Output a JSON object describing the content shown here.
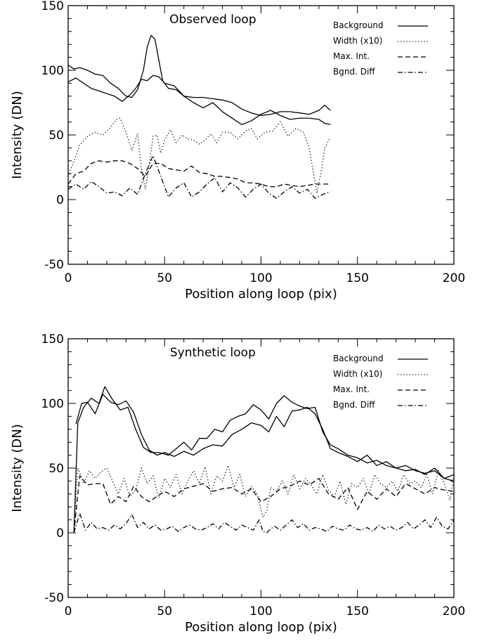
{
  "chart_data": [
    {
      "type": "line",
      "title": "Observed loop",
      "xlabel": "Position along loop (pix)",
      "ylabel": "Intensity (DN)",
      "xlim": [
        0,
        200
      ],
      "ylim": [
        -50,
        150
      ],
      "xticks": [
        "0",
        "50",
        "100",
        "150",
        "200"
      ],
      "yticks": [
        "-50",
        "0",
        "50",
        "100",
        "150"
      ],
      "grid": false,
      "legend_position": "top-right",
      "series": [
        {
          "name": "Background",
          "style": "solid",
          "x": [
            0,
            3,
            6,
            10,
            14,
            18,
            22,
            26,
            30,
            33,
            36,
            39,
            41,
            43,
            45,
            47,
            49,
            52,
            56,
            60,
            65,
            70,
            75,
            80,
            85,
            90,
            95,
            100,
            105,
            110,
            115,
            120,
            125,
            130,
            133,
            136
          ],
          "y": [
            104,
            101,
            102,
            100,
            97,
            96,
            90,
            86,
            80,
            79,
            85,
            100,
            118,
            127,
            124,
            108,
            92,
            86,
            85,
            80,
            79,
            79,
            78,
            77,
            75,
            70,
            67,
            65,
            66,
            68,
            68,
            67,
            66,
            69,
            73,
            69
          ]
        },
        {
          "name": "",
          "style": "solid",
          "x": [
            0,
            4,
            8,
            12,
            16,
            20,
            24,
            28,
            32,
            35,
            38,
            41,
            44,
            47,
            50,
            55,
            60,
            65,
            70,
            75,
            80,
            85,
            90,
            95,
            100,
            105,
            110,
            115,
            120,
            125,
            130,
            133,
            136
          ],
          "y": [
            91,
            94,
            90,
            86,
            84,
            82,
            80,
            76,
            81,
            86,
            93,
            92,
            96,
            95,
            90,
            88,
            80,
            75,
            71,
            75,
            68,
            63,
            58,
            61,
            66,
            69,
            65,
            62,
            63,
            63,
            62,
            59,
            58
          ]
        },
        {
          "name": "Width (x10)",
          "style": "dotted",
          "x": [
            0,
            3,
            6,
            10,
            14,
            18,
            22,
            25,
            27,
            30,
            33,
            36,
            38,
            40,
            42,
            44,
            46,
            48,
            50,
            53,
            56,
            59,
            62,
            65,
            68,
            71,
            74,
            77,
            80,
            84,
            88,
            92,
            95,
            98,
            102,
            106,
            110,
            114,
            118,
            122,
            125,
            127,
            129,
            131,
            133,
            136
          ],
          "y": [
            18,
            30,
            42,
            49,
            52,
            50,
            56,
            62,
            63,
            52,
            38,
            51,
            24,
            8,
            26,
            49,
            50,
            36,
            46,
            54,
            44,
            50,
            47,
            46,
            43,
            46,
            51,
            44,
            52,
            52,
            47,
            53,
            55,
            47,
            52,
            53,
            60,
            49,
            55,
            52,
            40,
            22,
            5,
            20,
            40,
            48
          ]
        },
        {
          "name": "Max. Int.",
          "style": "dashed",
          "x": [
            0,
            4,
            8,
            12,
            16,
            20,
            24,
            28,
            32,
            36,
            40,
            44,
            48,
            52,
            56,
            60,
            64,
            68,
            72,
            76,
            80,
            84,
            88,
            92,
            96,
            100,
            104,
            108,
            112,
            116,
            120,
            124,
            128,
            132,
            136
          ],
          "y": [
            12,
            20,
            22,
            28,
            30,
            29,
            30,
            30,
            28,
            24,
            18,
            28,
            28,
            24,
            23,
            22,
            26,
            21,
            20,
            18,
            18,
            17,
            16,
            13,
            13,
            12,
            10,
            10,
            12,
            11,
            10,
            11,
            12,
            12,
            12
          ]
        },
        {
          "name": "Bgnd. Diff",
          "style": "dashdot",
          "x": [
            0,
            4,
            8,
            12,
            16,
            20,
            24,
            28,
            32,
            36,
            40,
            44,
            48,
            52,
            56,
            60,
            64,
            68,
            72,
            76,
            80,
            84,
            88,
            92,
            96,
            100,
            104,
            108,
            112,
            116,
            120,
            124,
            128,
            132,
            136
          ],
          "y": [
            8,
            12,
            8,
            14,
            10,
            5,
            6,
            3,
            9,
            4,
            20,
            34,
            18,
            2,
            9,
            13,
            2,
            6,
            12,
            17,
            6,
            13,
            9,
            2,
            8,
            12,
            5,
            1,
            6,
            10,
            5,
            8,
            1,
            4,
            6
          ]
        }
      ]
    },
    {
      "type": "line",
      "title": "Synthetic loop",
      "xlabel": "Position along loop (pix)",
      "ylabel": "Intensity (DN)",
      "xlim": [
        0,
        200
      ],
      "ylim": [
        -50,
        150
      ],
      "xticks": [
        "0",
        "50",
        "100",
        "150",
        "200"
      ],
      "yticks": [
        "-50",
        "0",
        "50",
        "100",
        "150"
      ],
      "grid": false,
      "legend_position": "top-right",
      "series": [
        {
          "name": "Background",
          "style": "solid",
          "x": [
            3,
            5,
            8,
            12,
            16,
            19,
            23,
            27,
            31,
            35,
            39,
            43,
            47,
            52,
            56,
            60,
            64,
            68,
            72,
            76,
            80,
            84,
            88,
            92,
            96,
            100,
            104,
            108,
            112,
            116,
            120,
            124,
            128,
            132,
            136,
            140,
            145,
            150,
            155,
            160,
            165,
            170,
            175,
            180,
            185,
            190,
            195,
            200
          ],
          "y": [
            0,
            85,
            97,
            104,
            100,
            113,
            103,
            95,
            97,
            80,
            66,
            62,
            62,
            60,
            65,
            70,
            64,
            73,
            73,
            80,
            78,
            87,
            90,
            92,
            99,
            95,
            88,
            100,
            106,
            101,
            98,
            96,
            97,
            78,
            68,
            65,
            60,
            58,
            54,
            56,
            52,
            50,
            52,
            48,
            46,
            48,
            42,
            45
          ]
        },
        {
          "name": "",
          "style": "solid",
          "x": [
            4,
            7,
            10,
            14,
            18,
            22,
            26,
            30,
            34,
            38,
            42,
            46,
            50,
            55,
            60,
            65,
            70,
            75,
            80,
            85,
            90,
            95,
            100,
            104,
            108,
            112,
            116,
            120,
            124,
            128,
            132,
            136,
            140,
            145,
            150,
            155,
            160,
            165,
            170,
            175,
            180,
            185,
            190,
            195,
            200
          ],
          "y": [
            84,
            100,
            101,
            92,
            107,
            101,
            99,
            102,
            93,
            76,
            64,
            60,
            62,
            59,
            63,
            60,
            65,
            68,
            67,
            76,
            80,
            85,
            83,
            78,
            90,
            82,
            94,
            95,
            97,
            92,
            80,
            65,
            62,
            59,
            55,
            60,
            52,
            55,
            50,
            48,
            49,
            45,
            50,
            42,
            40
          ]
        },
        {
          "name": "Width (x10)",
          "style": "dotted",
          "x": [
            3,
            5,
            8,
            11,
            14,
            17,
            20,
            23,
            26,
            29,
            32,
            35,
            38,
            41,
            44,
            47,
            50,
            53,
            56,
            59,
            62,
            65,
            68,
            71,
            74,
            77,
            80,
            83,
            86,
            89,
            92,
            95,
            98,
            101,
            103,
            105,
            108,
            111,
            114,
            117,
            120,
            123,
            126,
            129,
            132,
            135,
            138,
            141,
            144,
            147,
            150,
            153,
            156,
            159,
            162,
            165,
            168,
            171,
            174,
            177,
            180,
            183,
            186,
            189,
            192,
            195,
            198,
            200
          ],
          "y": [
            0,
            50,
            38,
            48,
            42,
            47,
            50,
            40,
            30,
            42,
            28,
            33,
            50,
            38,
            44,
            27,
            42,
            35,
            45,
            30,
            40,
            48,
            38,
            51,
            30,
            44,
            40,
            52,
            35,
            45,
            28,
            36,
            30,
            12,
            17,
            35,
            32,
            40,
            30,
            45,
            34,
            42,
            37,
            30,
            45,
            33,
            28,
            40,
            22,
            38,
            35,
            42,
            30,
            45,
            38,
            35,
            40,
            32,
            45,
            38,
            40,
            35,
            45,
            30,
            48,
            38,
            25,
            45
          ]
        },
        {
          "name": "Max. Int.",
          "style": "dashed",
          "x": [
            3,
            6,
            10,
            14,
            18,
            22,
            26,
            30,
            34,
            38,
            42,
            46,
            50,
            55,
            60,
            65,
            70,
            75,
            80,
            85,
            90,
            95,
            100,
            105,
            110,
            115,
            120,
            125,
            130,
            135,
            140,
            145,
            150,
            155,
            160,
            165,
            170,
            175,
            180,
            185,
            190,
            195,
            200
          ],
          "y": [
            0,
            44,
            37,
            38,
            38,
            22,
            28,
            24,
            36,
            28,
            24,
            28,
            32,
            28,
            34,
            36,
            38,
            32,
            34,
            35,
            30,
            34,
            24,
            28,
            34,
            36,
            40,
            37,
            42,
            30,
            26,
            35,
            18,
            32,
            26,
            34,
            28,
            38,
            34,
            30,
            35,
            33,
            32
          ]
        },
        {
          "name": "Bgnd. Diff",
          "style": "dashdot",
          "x": [
            3,
            6,
            9,
            12,
            15,
            18,
            21,
            24,
            27,
            30,
            33,
            36,
            39,
            42,
            45,
            48,
            51,
            54,
            57,
            60,
            63,
            66,
            69,
            72,
            75,
            78,
            81,
            84,
            87,
            90,
            93,
            96,
            99,
            101,
            103,
            105,
            107,
            110,
            113,
            116,
            119,
            122,
            125,
            128,
            131,
            134,
            137,
            140,
            143,
            146,
            149,
            152,
            155,
            158,
            161,
            164,
            167,
            170,
            173,
            176,
            179,
            182,
            185,
            188,
            191,
            194,
            197,
            200
          ],
          "y": [
            0,
            15,
            2,
            8,
            3,
            4,
            2,
            6,
            3,
            7,
            14,
            4,
            8,
            3,
            6,
            2,
            3,
            5,
            1,
            4,
            6,
            3,
            2,
            4,
            7,
            3,
            8,
            5,
            2,
            6,
            4,
            2,
            10,
            1,
            0,
            3,
            5,
            2,
            6,
            10,
            4,
            7,
            2,
            4,
            3,
            1,
            5,
            3,
            2,
            6,
            3,
            2,
            4,
            1,
            6,
            3,
            5,
            2,
            4,
            8,
            3,
            6,
            10,
            4,
            12,
            5,
            3,
            10
          ]
        }
      ]
    }
  ]
}
